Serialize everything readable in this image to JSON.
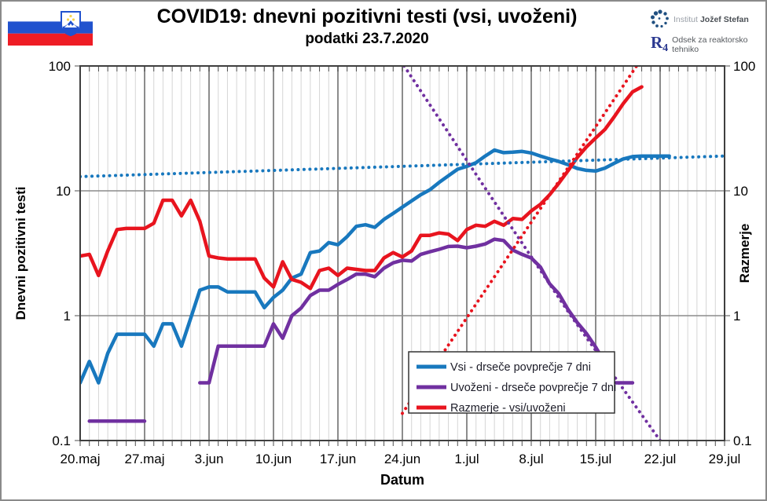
{
  "header": {
    "title": "COVID19: dnevni pozitivni testi (vsi, uvoženi)",
    "subtitle": "podatki 23.7.2020",
    "flag": "slovenia-flag",
    "logo": {
      "institute_light": "Institut",
      "institute_bold": "Jožef Stefan",
      "r_mark": "R",
      "r_sub": "4",
      "department": "Odsek za reaktorsko tehniko"
    }
  },
  "chart_data": {
    "type": "line",
    "title": "COVID19: dnevni pozitivni testi (vsi, uvoženi)",
    "subtitle": "podatki 23.7.2020",
    "xlabel": "Datum",
    "ylabel_left": "Dnevni pozitivni testi",
    "ylabel_right": "Razmerje",
    "y_scale": "log",
    "ylim": [
      0.1,
      100
    ],
    "y_ticks": [
      100,
      10,
      1,
      0.1
    ],
    "x_day0_date": "20.maj",
    "x_ticks": [
      {
        "day": 0,
        "label": "20.maj"
      },
      {
        "day": 7,
        "label": "27.maj"
      },
      {
        "day": 14,
        "label": "3.jun"
      },
      {
        "day": 21,
        "label": "10.jun"
      },
      {
        "day": 28,
        "label": "17.jun"
      },
      {
        "day": 35,
        "label": "24.jun"
      },
      {
        "day": 42,
        "label": "1.jul"
      },
      {
        "day": 49,
        "label": "8.jul"
      },
      {
        "day": 56,
        "label": "15.jul"
      },
      {
        "day": 63,
        "label": "22.jul"
      },
      {
        "day": 70,
        "label": "29.jul"
      }
    ],
    "grid": {
      "minor_daily": true,
      "major_weekly": true
    },
    "legend_position": "bottom-center-box",
    "legend": [
      {
        "label": "Vsi - drseče povprečje 7 dni",
        "color": "#1878be"
      },
      {
        "label": "Uvoženi - drseče povprečje 7 dni",
        "color": "#7030a0"
      },
      {
        "label": "Razmerje - vsi/uvoženi",
        "color": "#e8141e"
      }
    ],
    "series": [
      {
        "id": "vsi",
        "label": "Vsi - drseče povprečje 7 dni",
        "color": "#1878be",
        "style": "solid",
        "segments": [
          [
            [
              0,
              0.29
            ],
            [
              1,
              0.43
            ],
            [
              2,
              0.29
            ],
            [
              3,
              0.5
            ],
            [
              4,
              0.71
            ],
            [
              5,
              0.71
            ],
            [
              6,
              0.71
            ],
            [
              7,
              0.71
            ],
            [
              8,
              0.57
            ],
            [
              9,
              0.86
            ],
            [
              10,
              0.86
            ],
            [
              11,
              0.57
            ],
            [
              12,
              0.95
            ],
            [
              13,
              1.6
            ],
            [
              14,
              1.7
            ],
            [
              15,
              1.7
            ],
            [
              16,
              1.55
            ],
            [
              17,
              1.55
            ],
            [
              18,
              1.55
            ],
            [
              19,
              1.55
            ],
            [
              20,
              1.16
            ],
            [
              21,
              1.4
            ],
            [
              22,
              1.6
            ],
            [
              23,
              2.0
            ],
            [
              24,
              2.15
            ],
            [
              25,
              3.2
            ],
            [
              26,
              3.3
            ],
            [
              27,
              3.85
            ],
            [
              28,
              3.7
            ],
            [
              29,
              4.3
            ],
            [
              30,
              5.2
            ],
            [
              31,
              5.35
            ],
            [
              32,
              5.1
            ],
            [
              33,
              5.9
            ],
            [
              34,
              6.6
            ],
            [
              35,
              7.4
            ],
            [
              36,
              8.3
            ],
            [
              37,
              9.3
            ],
            [
              38,
              10.2
            ],
            [
              39,
              11.7
            ],
            [
              40,
              13.2
            ],
            [
              41,
              14.9
            ],
            [
              42,
              15.7
            ],
            [
              43,
              16.8
            ],
            [
              44,
              19.0
            ],
            [
              45,
              21.2
            ],
            [
              46,
              20.2
            ],
            [
              47,
              20.4
            ],
            [
              48,
              20.7
            ],
            [
              49,
              20.1
            ],
            [
              50,
              19.0
            ],
            [
              51,
              18.0
            ],
            [
              52,
              17.2
            ],
            [
              53,
              16.2
            ],
            [
              54,
              15.1
            ],
            [
              55,
              14.6
            ],
            [
              56,
              14.4
            ],
            [
              57,
              15.2
            ],
            [
              58,
              16.6
            ],
            [
              59,
              18.0
            ],
            [
              60,
              18.8
            ],
            [
              61,
              19.0
            ],
            [
              62,
              19.0
            ],
            [
              63,
              19.0
            ],
            [
              64,
              19.0
            ]
          ]
        ]
      },
      {
        "id": "uvozeni",
        "label": "Uvoženi - drseče povprečje 7 dni",
        "color": "#7030a0",
        "style": "solid",
        "segments": [
          [
            [
              1,
              0.143
            ],
            [
              7,
              0.143
            ]
          ],
          [
            [
              13,
              0.29
            ],
            [
              14,
              0.29
            ],
            [
              15,
              0.57
            ],
            [
              16,
              0.57
            ],
            [
              17,
              0.57
            ],
            [
              18,
              0.57
            ],
            [
              19,
              0.57
            ],
            [
              20,
              0.57
            ],
            [
              21,
              0.86
            ],
            [
              22,
              0.66
            ],
            [
              23,
              1.0
            ],
            [
              24,
              1.15
            ],
            [
              25,
              1.45
            ],
            [
              26,
              1.6
            ],
            [
              27,
              1.6
            ],
            [
              28,
              1.78
            ],
            [
              29,
              1.95
            ],
            [
              30,
              2.15
            ],
            [
              31,
              2.15
            ],
            [
              32,
              2.05
            ],
            [
              33,
              2.4
            ],
            [
              34,
              2.65
            ],
            [
              35,
              2.78
            ],
            [
              36,
              2.74
            ],
            [
              37,
              3.1
            ],
            [
              38,
              3.25
            ],
            [
              39,
              3.4
            ],
            [
              40,
              3.58
            ],
            [
              41,
              3.6
            ],
            [
              42,
              3.5
            ],
            [
              43,
              3.6
            ],
            [
              44,
              3.75
            ],
            [
              45,
              4.1
            ],
            [
              46,
              4.0
            ],
            [
              47,
              3.35
            ],
            [
              48,
              3.1
            ],
            [
              49,
              2.9
            ],
            [
              50,
              2.45
            ],
            [
              51,
              1.8
            ],
            [
              52,
              1.5
            ],
            [
              53,
              1.12
            ],
            [
              54,
              0.88
            ],
            [
              55,
              0.72
            ],
            [
              56,
              0.56
            ],
            [
              57,
              0.42
            ],
            [
              58,
              0.29
            ],
            [
              59,
              0.29
            ],
            [
              60,
              0.29
            ]
          ]
        ]
      },
      {
        "id": "razmerje",
        "label": "Razmerje - vsi/uvoženi",
        "color": "#e8141e",
        "style": "solid",
        "segments": [
          [
            [
              0,
              3.0
            ],
            [
              1,
              3.1
            ],
            [
              2,
              2.1
            ],
            [
              3,
              3.3
            ],
            [
              4,
              4.9
            ],
            [
              5,
              5.0
            ],
            [
              6,
              5.0
            ],
            [
              7,
              5.0
            ],
            [
              8,
              5.5
            ],
            [
              9,
              8.4
            ],
            [
              10,
              8.4
            ],
            [
              11,
              6.3
            ],
            [
              12,
              8.4
            ],
            [
              13,
              5.7
            ],
            [
              14,
              3.0
            ],
            [
              15,
              2.9
            ],
            [
              16,
              2.85
            ],
            [
              17,
              2.85
            ],
            [
              18,
              2.85
            ],
            [
              19,
              2.85
            ],
            [
              20,
              2.0
            ],
            [
              21,
              1.7
            ],
            [
              22,
              2.7
            ],
            [
              23,
              1.95
            ],
            [
              24,
              1.85
            ],
            [
              25,
              1.65
            ],
            [
              26,
              2.3
            ],
            [
              27,
              2.4
            ],
            [
              28,
              2.1
            ],
            [
              29,
              2.4
            ],
            [
              30,
              2.35
            ],
            [
              31,
              2.3
            ],
            [
              32,
              2.3
            ],
            [
              33,
              2.9
            ],
            [
              34,
              3.2
            ],
            [
              35,
              2.95
            ],
            [
              36,
              3.3
            ],
            [
              37,
              4.4
            ],
            [
              38,
              4.4
            ],
            [
              39,
              4.6
            ],
            [
              40,
              4.5
            ],
            [
              41,
              4.0
            ],
            [
              42,
              4.9
            ],
            [
              43,
              5.3
            ],
            [
              44,
              5.2
            ],
            [
              45,
              5.7
            ],
            [
              46,
              5.3
            ],
            [
              47,
              6.0
            ],
            [
              48,
              5.9
            ],
            [
              49,
              6.9
            ],
            [
              50,
              7.8
            ],
            [
              51,
              9.3
            ],
            [
              52,
              11.5
            ],
            [
              53,
              14.5
            ],
            [
              54,
              18.5
            ],
            [
              55,
              22.5
            ],
            [
              56,
              26.5
            ],
            [
              57,
              31
            ],
            [
              58,
              39
            ],
            [
              59,
              50
            ],
            [
              60,
              62
            ],
            [
              61,
              68
            ]
          ]
        ]
      },
      {
        "id": "vsi-trend",
        "label": "Vsi - eksponentni trend",
        "color": "#1878be",
        "style": "dotted",
        "segments": [
          [
            [
              0,
              13.0
            ],
            [
              70,
              19.0
            ]
          ]
        ]
      },
      {
        "id": "uvozeni-trend",
        "label": "Uvoženi - eksponentni trend",
        "color": "#7030a0",
        "style": "dotted",
        "segments": [
          [
            [
              35.2,
              100
            ],
            [
              44,
              10.5
            ],
            [
              53.3,
              1.0
            ],
            [
              63,
              0.1
            ]
          ]
        ]
      },
      {
        "id": "razmerje-trend",
        "label": "Razmerje - eksponentni trend",
        "color": "#e8141e",
        "style": "dotted",
        "segments": [
          [
            [
              35,
              0.165
            ],
            [
              61,
              115
            ]
          ]
        ]
      }
    ]
  }
}
